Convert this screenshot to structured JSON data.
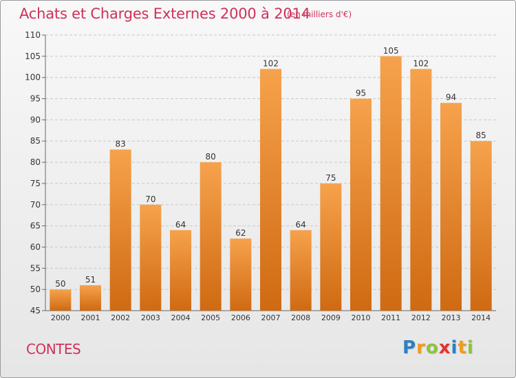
{
  "header": {
    "title": "Achats et Charges Externes 2000 à 2014",
    "subtitle": "(en milliers d'€)"
  },
  "footer": {
    "commune": "CONTES",
    "logo_letters": [
      {
        "ch": "P",
        "color": "#2e7fc4"
      },
      {
        "ch": "r",
        "color": "#f19a1c"
      },
      {
        "ch": "o",
        "color": "#8cc43c"
      },
      {
        "ch": "x",
        "color": "#e5322b"
      },
      {
        "ch": "i",
        "color": "#2e7fc4"
      },
      {
        "ch": "t",
        "color": "#f19a1c"
      },
      {
        "ch": "i",
        "color": "#8cc43c"
      }
    ]
  },
  "colors": {
    "bar_top": "#f6a24c",
    "bar_bottom": "#cf6a12",
    "grid": "#c8c8c8",
    "text": "#333333",
    "accent": "#d0305a"
  },
  "chart_data": {
    "type": "bar",
    "title": "Achats et Charges Externes 2000 à 2014",
    "subtitle": "(en milliers d'€)",
    "categories": [
      "2000",
      "2001",
      "2002",
      "2003",
      "2004",
      "2005",
      "2006",
      "2007",
      "2008",
      "2009",
      "2010",
      "2011",
      "2012",
      "2013",
      "2014"
    ],
    "values": [
      50,
      51,
      83,
      70,
      64,
      80,
      62,
      102,
      64,
      75,
      95,
      105,
      102,
      94,
      85
    ],
    "ylim": [
      45,
      110
    ],
    "yticks": [
      45,
      50,
      55,
      60,
      65,
      70,
      75,
      80,
      85,
      90,
      95,
      100,
      105,
      110
    ],
    "grid": true,
    "data_labels": true
  }
}
